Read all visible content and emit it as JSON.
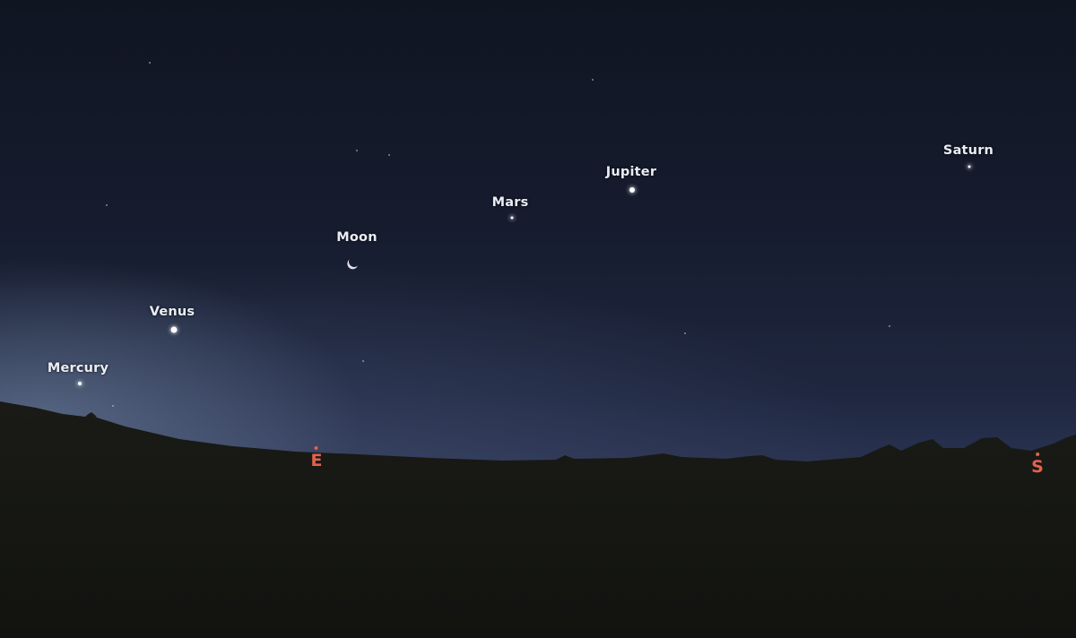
{
  "sky": {
    "planets": [
      {
        "name": "Saturn"
      },
      {
        "name": "Jupiter"
      },
      {
        "name": "Mars"
      },
      {
        "name": "Moon"
      },
      {
        "name": "Venus"
      },
      {
        "name": "Mercury"
      }
    ]
  },
  "horizon": {
    "east_label": "E",
    "south_label": "S"
  },
  "colors": {
    "compass": "#e4614f",
    "label": "#e9edf5"
  }
}
